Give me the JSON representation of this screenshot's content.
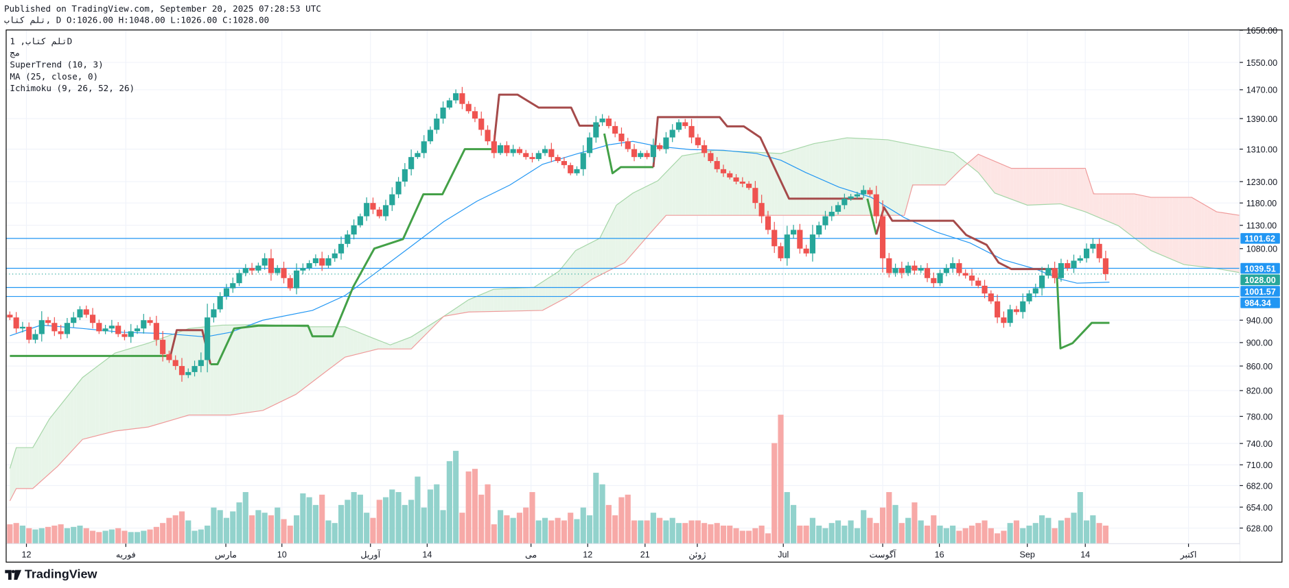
{
  "header": {
    "published": "Published on TradingView.com, September 20, 2025 07:28:53 UTC",
    "ohlc": "تلم كتاب, D O:1026.00 H:1048.00 L:1026.00 C:1028.00"
  },
  "legend": {
    "symbol": "تلم كتاب, 1D",
    "exchange": "مج",
    "supertrend": "SuperTrend (10, 3)",
    "ma": "MA (25, close, 0)",
    "ichimoku": "Ichimoku (9, 26, 52, 26)"
  },
  "brand": "TradingView",
  "colors": {
    "up": "#26a69a",
    "down": "#ef5350",
    "up_vol": "#92d2cc",
    "down_vol": "#f7a9a7",
    "st_up": "#43a047",
    "st_down": "#a54a4a",
    "ma": "#2196f3",
    "hline": "#2196f3",
    "cloud_up": "#e8f5e9",
    "cloud_down": "#fde5e4",
    "span_a": "#a5d6a7",
    "span_b": "#ef9a9a"
  },
  "chart_data": {
    "type": "candlestick",
    "title": "تلم كتاب, 1D",
    "y_scale": "log",
    "ylim": [
      620,
      1660
    ],
    "y_ticks": [
      "1650.00",
      "1550.00",
      "1470.00",
      "1390.00",
      "1310.00",
      "1230.00",
      "1180.00",
      "1130.00",
      "1080.00",
      "940.00",
      "900.00",
      "860.00",
      "820.00",
      "780.00",
      "740.00",
      "710.00",
      "682.00",
      "654.00",
      "628.00"
    ],
    "x_ticks": [
      {
        "label": "12",
        "bar": 2.6
      },
      {
        "label": "فوریه",
        "bar": 18.2
      },
      {
        "label": "مارس",
        "bar": 33.9
      },
      {
        "label": "10",
        "bar": 42.7
      },
      {
        "label": "آوریل",
        "bar": 56.6
      },
      {
        "label": "14",
        "bar": 65.5
      },
      {
        "label": "می",
        "bar": 81.8
      },
      {
        "label": "12",
        "bar": 90.7
      },
      {
        "label": "21",
        "bar": 99.7
      },
      {
        "label": "ژوئن",
        "bar": 107.9
      },
      {
        "label": "Jul",
        "bar": 121.4
      },
      {
        "label": "آگوست",
        "bar": 137
      },
      {
        "label": "16",
        "bar": 145.9
      },
      {
        "label": "Sep",
        "bar": 159.7
      },
      {
        "label": "14",
        "bar": 168.8
      },
      {
        "label": "اکتبر",
        "bar": 185
      }
    ],
    "closes": [
      945,
      925,
      928,
      905,
      915,
      940,
      935,
      920,
      915,
      935,
      945,
      960,
      950,
      935,
      920,
      925,
      930,
      915,
      910,
      920,
      925,
      940,
      935,
      905,
      880,
      870,
      860,
      845,
      850,
      860,
      870,
      945,
      960,
      985,
      1000,
      1010,
      1030,
      1040,
      1035,
      1045,
      1060,
      1030,
      1040,
      1020,
      1000,
      1035,
      1040,
      1050,
      1060,
      1045,
      1060,
      1070,
      1090,
      1110,
      1130,
      1150,
      1180,
      1165,
      1150,
      1175,
      1200,
      1230,
      1260,
      1290,
      1300,
      1330,
      1360,
      1390,
      1420,
      1440,
      1460,
      1430,
      1410,
      1390,
      1360,
      1330,
      1300,
      1320,
      1300,
      1310,
      1300,
      1290,
      1285,
      1300,
      1310,
      1290,
      1280,
      1270,
      1250,
      1260,
      1300,
      1340,
      1380,
      1390,
      1370,
      1350,
      1330,
      1310,
      1290,
      1300,
      1290,
      1320,
      1310,
      1340,
      1360,
      1380,
      1370,
      1340,
      1320,
      1300,
      1280,
      1260,
      1250,
      1240,
      1230,
      1225,
      1215,
      1180,
      1150,
      1120,
      1085,
      1060,
      1110,
      1120,
      1080,
      1070,
      1110,
      1130,
      1150,
      1160,
      1175,
      1190,
      1195,
      1200,
      1210,
      1200,
      1150,
      1060,
      1030,
      1040,
      1030,
      1045,
      1035,
      1040,
      1020,
      1010,
      1030,
      1040,
      1050,
      1030,
      1025,
      1015,
      1005,
      990,
      975,
      945,
      935,
      960,
      955,
      975,
      990,
      1000,
      1025,
      1040,
      1020,
      1050,
      1040,
      1055,
      1060,
      1080,
      1090,
      1060,
      1028
    ],
    "first_open": 950,
    "volumes": [
      15,
      16,
      14,
      12,
      11,
      12,
      13,
      14,
      15,
      12,
      13,
      14,
      12,
      10,
      9,
      10,
      11,
      12,
      10,
      9,
      9,
      10,
      11,
      13,
      16,
      20,
      22,
      25,
      18,
      10,
      11,
      14,
      28,
      26,
      20,
      25,
      32,
      40,
      22,
      26,
      24,
      22,
      28,
      19,
      14,
      22,
      39,
      36,
      30,
      38,
      18,
      16,
      30,
      34,
      40,
      38,
      24,
      20,
      34,
      36,
      42,
      40,
      30,
      34,
      52,
      28,
      42,
      46,
      26,
      64,
      72,
      24,
      56,
      58,
      38,
      46,
      15,
      26,
      22,
      20,
      24,
      28,
      40,
      18,
      20,
      18,
      20,
      18,
      24,
      19,
      28,
      22,
      55,
      46,
      30,
      22,
      36,
      38,
      18,
      18,
      18,
      24,
      20,
      18,
      20,
      16,
      16,
      18,
      18,
      16,
      15,
      16,
      14,
      14,
      12,
      10,
      10,
      12,
      14,
      8,
      78,
      100,
      40,
      30,
      14,
      14,
      20,
      14,
      12,
      16,
      18,
      14,
      18,
      12,
      26,
      20,
      16,
      28,
      40,
      30,
      16,
      20,
      32,
      18,
      14,
      22,
      14,
      12,
      14,
      10,
      12,
      14,
      16,
      18,
      12,
      8,
      10,
      16,
      18,
      12,
      14,
      16,
      22,
      20,
      12,
      18,
      20,
      24,
      40,
      18,
      22,
      16,
      14
    ],
    "supertrend": [
      {
        "trend": "up",
        "points": [
          [
            0,
            877
          ],
          [
            25.2,
            877
          ]
        ]
      },
      {
        "trend": "down",
        "points": [
          [
            25.2,
            877
          ],
          [
            26.2,
            922
          ],
          [
            30.2,
            922
          ],
          [
            31.5,
            863
          ]
        ]
      },
      {
        "trend": "up",
        "points": [
          [
            31.5,
            863
          ],
          [
            32.6,
            863
          ],
          [
            35.2,
            925
          ],
          [
            39,
            930
          ],
          [
            46.8,
            930
          ],
          [
            47.5,
            911
          ],
          [
            50.7,
            911
          ],
          [
            53.9,
            1003
          ],
          [
            57.2,
            1080
          ],
          [
            61.7,
            1100
          ],
          [
            64.9,
            1200
          ],
          [
            67.9,
            1200
          ],
          [
            71.4,
            1310
          ],
          [
            75.9,
            1310
          ]
        ]
      },
      {
        "trend": "down",
        "points": [
          [
            75.9,
            1310
          ],
          [
            76.8,
            1456
          ],
          [
            79.7,
            1456
          ],
          [
            83,
            1420
          ],
          [
            88.1,
            1420
          ],
          [
            89.4,
            1371
          ],
          [
            92.6,
            1371
          ]
        ]
      },
      {
        "trend": "up",
        "points": [
          [
            93.3,
            1350
          ],
          [
            94.6,
            1250
          ],
          [
            95.9,
            1265
          ],
          [
            101,
            1265
          ]
        ]
      },
      {
        "trend": "down",
        "points": [
          [
            101,
            1265
          ],
          [
            101.7,
            1394
          ],
          [
            111.4,
            1394
          ],
          [
            112.6,
            1369
          ],
          [
            115.2,
            1369
          ],
          [
            117.8,
            1340
          ],
          [
            122.3,
            1190
          ],
          [
            133.9,
            1190
          ]
        ]
      },
      {
        "trend": "up",
        "points": [
          [
            134.6,
            1190
          ],
          [
            136,
            1110
          ]
        ]
      },
      {
        "trend": "down",
        "points": [
          [
            136,
            1110
          ],
          [
            137.2,
            1170
          ],
          [
            138.5,
            1140
          ],
          [
            148.1,
            1140
          ],
          [
            150.1,
            1109
          ],
          [
            153.3,
            1088
          ],
          [
            155.2,
            1051
          ],
          [
            157.2,
            1038
          ],
          [
            164.3,
            1038
          ]
        ]
      },
      {
        "trend": "up",
        "points": [
          [
            164.3,
            1038
          ],
          [
            164.9,
            890
          ],
          [
            166.8,
            899
          ],
          [
            169.8,
            935
          ],
          [
            172.6,
            935
          ]
        ]
      }
    ],
    "ma": [
      [
        0,
        912
      ],
      [
        4.9,
        931
      ],
      [
        11.4,
        925
      ],
      [
        17.8,
        918
      ],
      [
        24.3,
        916
      ],
      [
        30.7,
        910
      ],
      [
        34.6,
        918
      ],
      [
        39.7,
        940
      ],
      [
        47.5,
        958
      ],
      [
        52.6,
        986
      ],
      [
        57.8,
        1034
      ],
      [
        63,
        1085
      ],
      [
        68.1,
        1138
      ],
      [
        73.3,
        1184
      ],
      [
        78.5,
        1222
      ],
      [
        83.6,
        1272
      ],
      [
        88.8,
        1297
      ],
      [
        94,
        1321
      ],
      [
        97.8,
        1330
      ],
      [
        101.7,
        1317
      ],
      [
        106.8,
        1309
      ],
      [
        112,
        1307
      ],
      [
        117.2,
        1299
      ],
      [
        121,
        1282
      ],
      [
        124.9,
        1252
      ],
      [
        130.1,
        1217
      ],
      [
        135.2,
        1193
      ],
      [
        140.4,
        1147
      ],
      [
        145.5,
        1115
      ],
      [
        150.7,
        1092
      ],
      [
        155.9,
        1057
      ],
      [
        161,
        1038
      ],
      [
        164.9,
        1018
      ],
      [
        167.5,
        1010
      ],
      [
        172.6,
        1012
      ]
    ],
    "ichimoku_span_a": [
      [
        0,
        705
      ],
      [
        1,
        734
      ],
      [
        3.6,
        734
      ],
      [
        6.2,
        776
      ],
      [
        11.4,
        841
      ],
      [
        16.5,
        882
      ],
      [
        21.7,
        899
      ],
      [
        28.1,
        925
      ],
      [
        33.3,
        931
      ],
      [
        39.7,
        932
      ],
      [
        46.2,
        928
      ],
      [
        52.6,
        928
      ],
      [
        56.5,
        910
      ],
      [
        59.7,
        896
      ],
      [
        63,
        910
      ],
      [
        68.1,
        947
      ],
      [
        72,
        978
      ],
      [
        75.9,
        998
      ],
      [
        82.3,
        1002
      ],
      [
        86.2,
        1034
      ],
      [
        88.8,
        1076
      ],
      [
        92.6,
        1102
      ],
      [
        95.2,
        1175
      ],
      [
        97.8,
        1203
      ],
      [
        101.7,
        1232
      ],
      [
        105.5,
        1293
      ],
      [
        110.7,
        1307
      ],
      [
        115.9,
        1303
      ],
      [
        121,
        1299
      ],
      [
        126.2,
        1324
      ],
      [
        131.4,
        1339
      ],
      [
        137.8,
        1334
      ],
      [
        143,
        1317
      ],
      [
        148.1,
        1301
      ],
      [
        152,
        1252
      ],
      [
        154.6,
        1203
      ],
      [
        159.7,
        1175
      ],
      [
        164.9,
        1178
      ],
      [
        168.8,
        1160
      ],
      [
        174,
        1129
      ],
      [
        179.1,
        1076
      ],
      [
        184.3,
        1047
      ],
      [
        189.4,
        1039
      ],
      [
        193,
        1031
      ]
    ],
    "ichimoku_span_b": [
      [
        0,
        662
      ],
      [
        1,
        678
      ],
      [
        3.6,
        678
      ],
      [
        7.5,
        708
      ],
      [
        11.4,
        746
      ],
      [
        16.5,
        758
      ],
      [
        21.7,
        764
      ],
      [
        28.1,
        782
      ],
      [
        34.6,
        782
      ],
      [
        39.7,
        789
      ],
      [
        44.9,
        814
      ],
      [
        50,
        854
      ],
      [
        52.6,
        875
      ],
      [
        57.8,
        889
      ],
      [
        63,
        889
      ],
      [
        68.1,
        947
      ],
      [
        72,
        955
      ],
      [
        83.6,
        958
      ],
      [
        87.5,
        983
      ],
      [
        91.4,
        1018
      ],
      [
        96.5,
        1051
      ],
      [
        100.4,
        1111
      ],
      [
        103,
        1152
      ],
      [
        140.4,
        1152
      ],
      [
        141.7,
        1222
      ],
      [
        146.8,
        1222
      ],
      [
        149.4,
        1262
      ],
      [
        152,
        1297
      ],
      [
        157.2,
        1262
      ],
      [
        168.8,
        1262
      ],
      [
        170.1,
        1201
      ],
      [
        176.5,
        1201
      ],
      [
        179.1,
        1193
      ],
      [
        185.5,
        1193
      ],
      [
        189.4,
        1160
      ],
      [
        193,
        1152
      ]
    ],
    "price_lines": [
      {
        "value": 1101.62,
        "label": "1101.62"
      },
      {
        "value": 1039.51,
        "label": "1039.51"
      },
      {
        "value": 1001.57,
        "label": "1001.57"
      },
      {
        "value": 984.34,
        "label": "984.34"
      }
    ],
    "last_price": {
      "value": 1028.0,
      "label": "1028.00"
    }
  }
}
